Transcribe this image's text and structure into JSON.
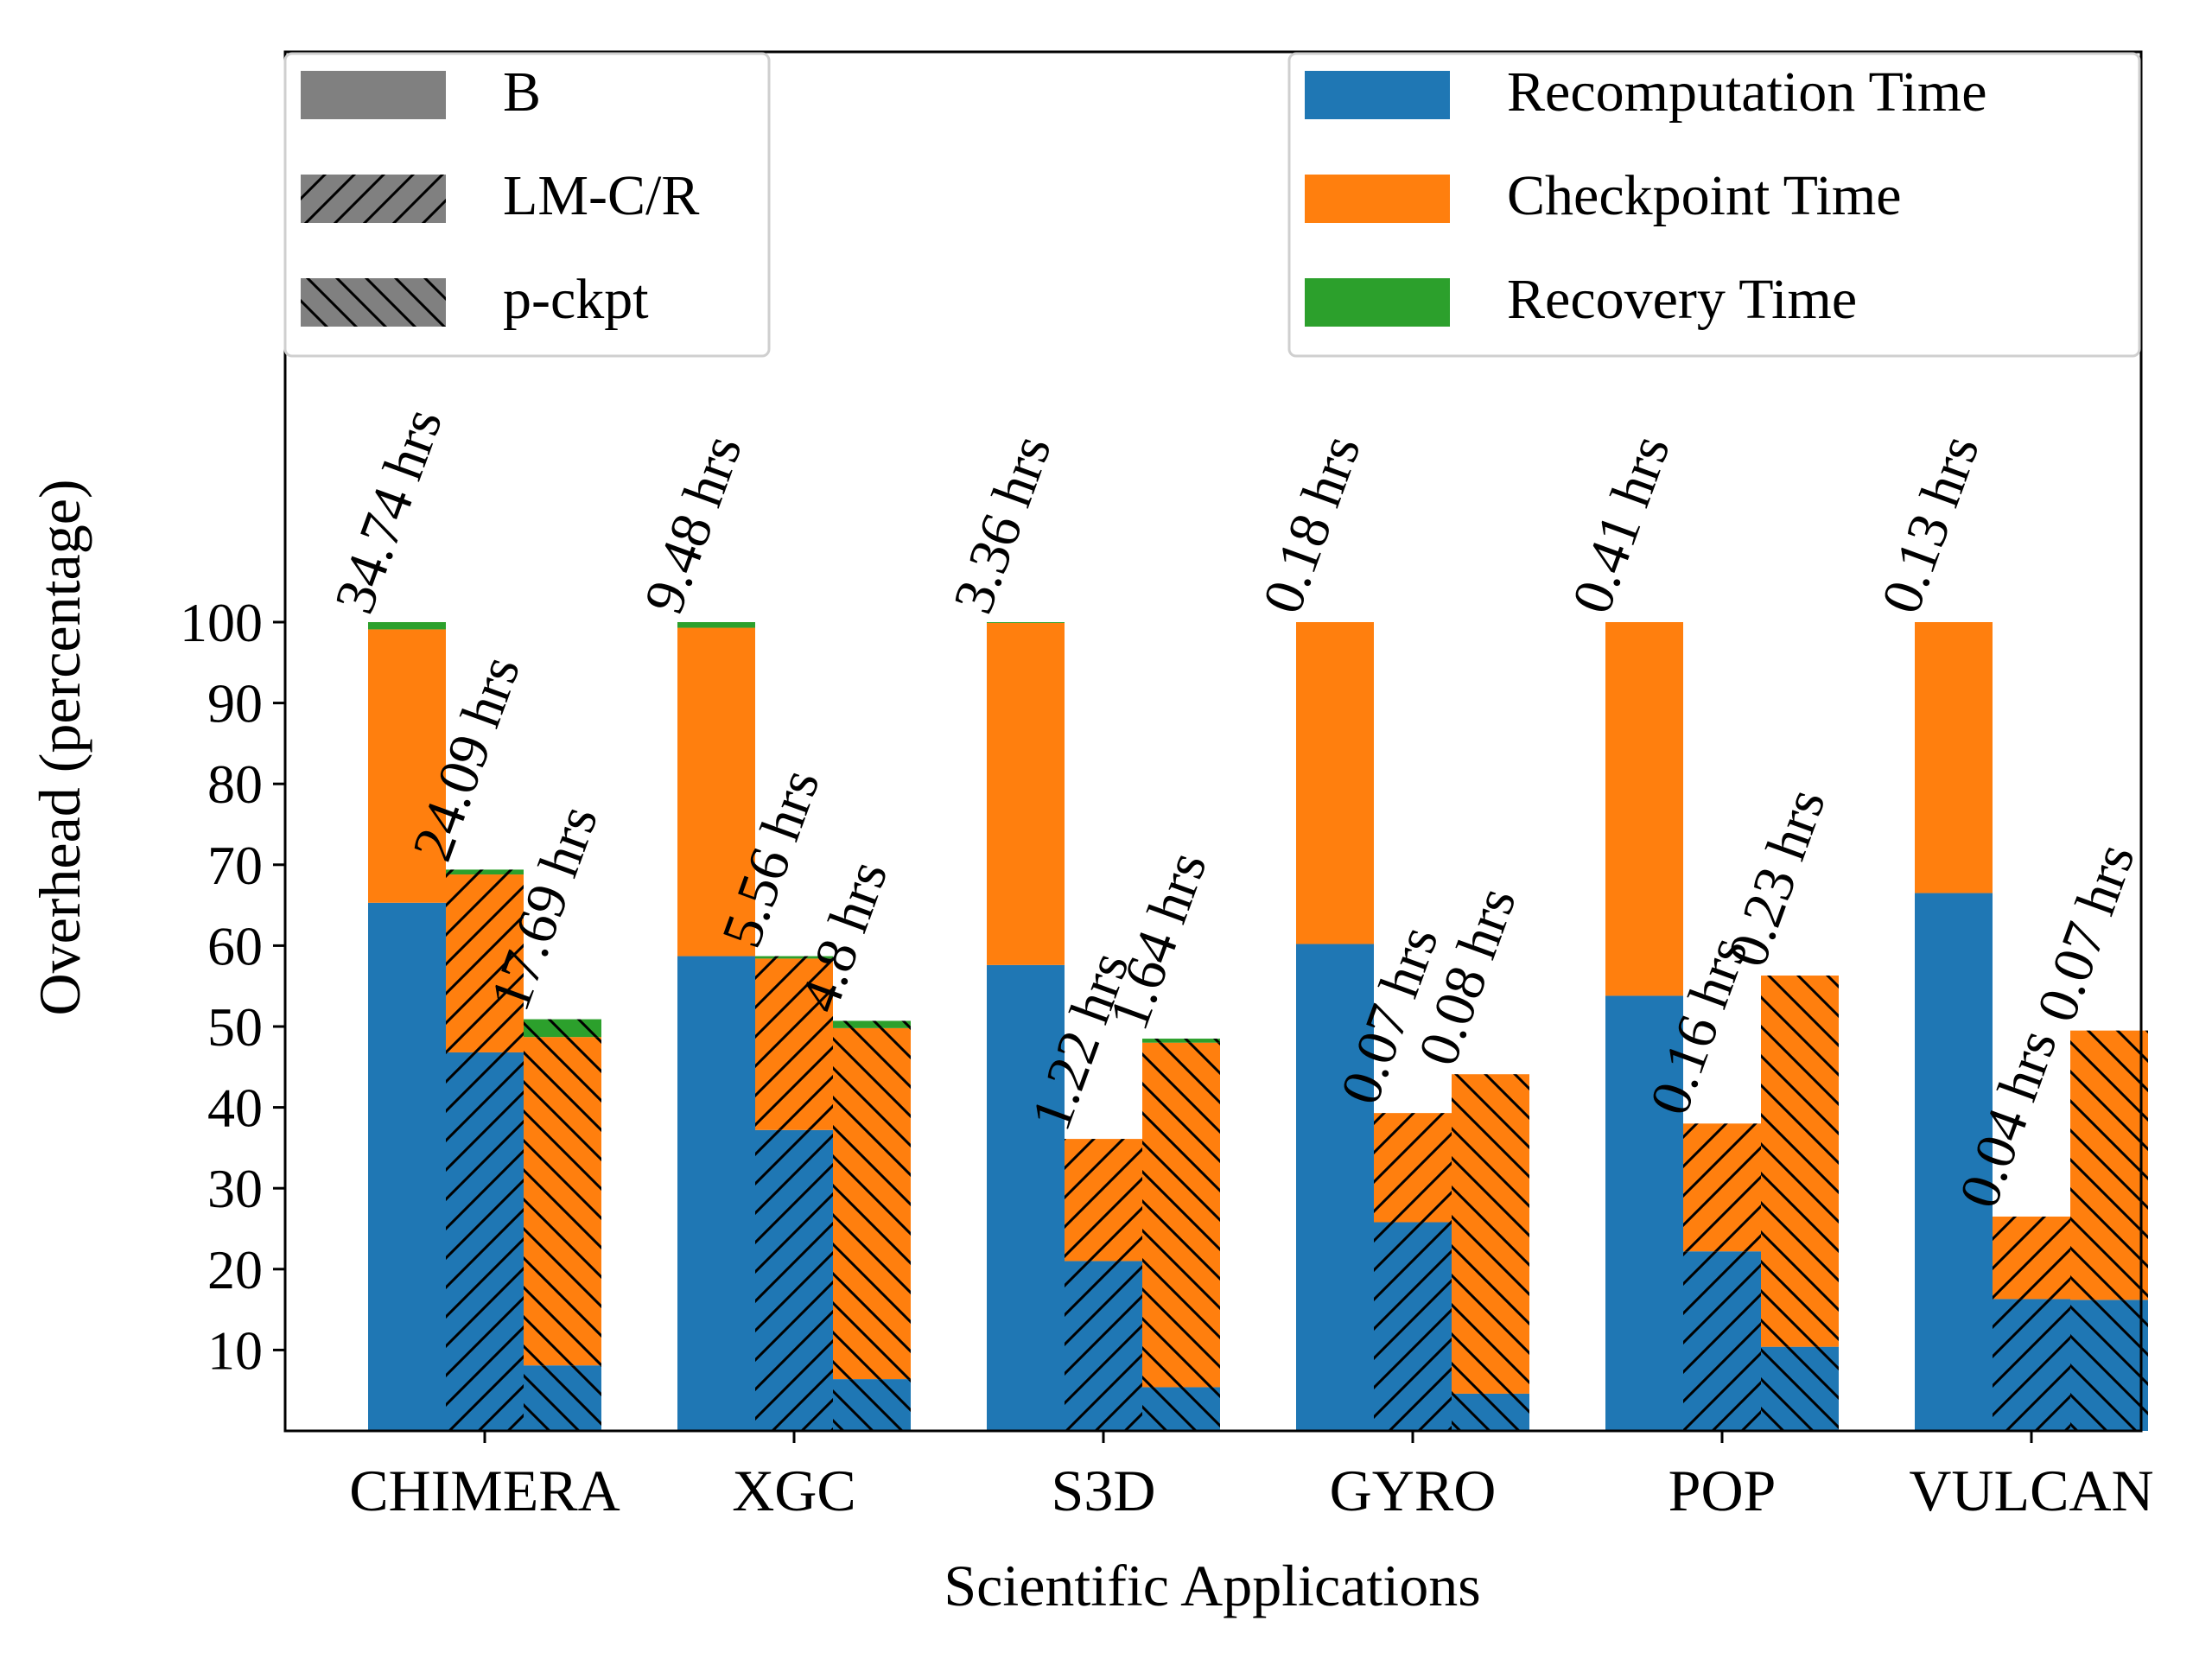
{
  "chart_data": {
    "type": "bar",
    "stacked": true,
    "grouped": true,
    "xlabel": "Scientific Applications",
    "ylabel": "Overhead (percentage)",
    "ylim": [
      0,
      100
    ],
    "yticks": [
      10,
      20,
      30,
      40,
      50,
      60,
      70,
      80,
      90,
      100
    ],
    "grid": false,
    "categories": [
      "CHIMERA",
      "XGC",
      "S3D",
      "GYRO",
      "POP",
      "VULCAN"
    ],
    "methods": [
      {
        "name": "B",
        "hatch": "none"
      },
      {
        "name": "LM-C/R",
        "hatch": "forward-diagonal"
      },
      {
        "name": "p-ckpt",
        "hatch": "back-diagonal"
      }
    ],
    "components": [
      {
        "name": "Recomputation Time",
        "color": "#1f77b4"
      },
      {
        "name": "Checkpoint Time",
        "color": "#ff7f0e"
      },
      {
        "name": "Recovery Time",
        "color": "#2ca02c"
      }
    ],
    "legend_methods_placement": "top-left",
    "legend_components_placement": "top-right",
    "series": [
      {
        "name": "B",
        "recomputation": [
          65.3,
          58.7,
          57.6,
          60.2,
          53.8,
          66.5
        ],
        "checkpoint": [
          33.8,
          40.6,
          42.3,
          39.8,
          46.2,
          33.5
        ],
        "recovery": [
          0.9,
          0.7,
          0.1,
          0.0,
          0.0,
          0.0
        ],
        "labels": [
          "34.74 hrs",
          "9.48 hrs",
          "3.36 hrs",
          "0.18 hrs",
          "0.41 hrs",
          "0.13 hrs"
        ]
      },
      {
        "name": "LM-C/R",
        "recomputation": [
          46.8,
          37.2,
          21.0,
          25.8,
          22.2,
          16.3
        ],
        "checkpoint": [
          22.0,
          21.2,
          15.1,
          13.5,
          15.8,
          10.2
        ],
        "recovery": [
          0.6,
          0.3,
          0.0,
          0.0,
          0.0,
          0.0
        ],
        "labels": [
          "24.09 hrs",
          "5.56 hrs",
          "1.22 hrs",
          "0.07 hrs",
          "0.16 hrs",
          "0.04 hrs"
        ]
      },
      {
        "name": "p-ckpt",
        "recomputation": [
          8.1,
          6.4,
          5.4,
          4.6,
          10.4,
          16.2
        ],
        "checkpoint": [
          40.6,
          43.4,
          42.6,
          39.5,
          45.9,
          33.3
        ],
        "recovery": [
          2.2,
          0.9,
          0.5,
          0.0,
          0.0,
          0.0
        ],
        "labels": [
          "17.69 hrs",
          "4.8 hrs",
          "1.64 hrs",
          "0.08 hrs",
          "0.23 hrs",
          "0.07 hrs"
        ]
      }
    ]
  }
}
